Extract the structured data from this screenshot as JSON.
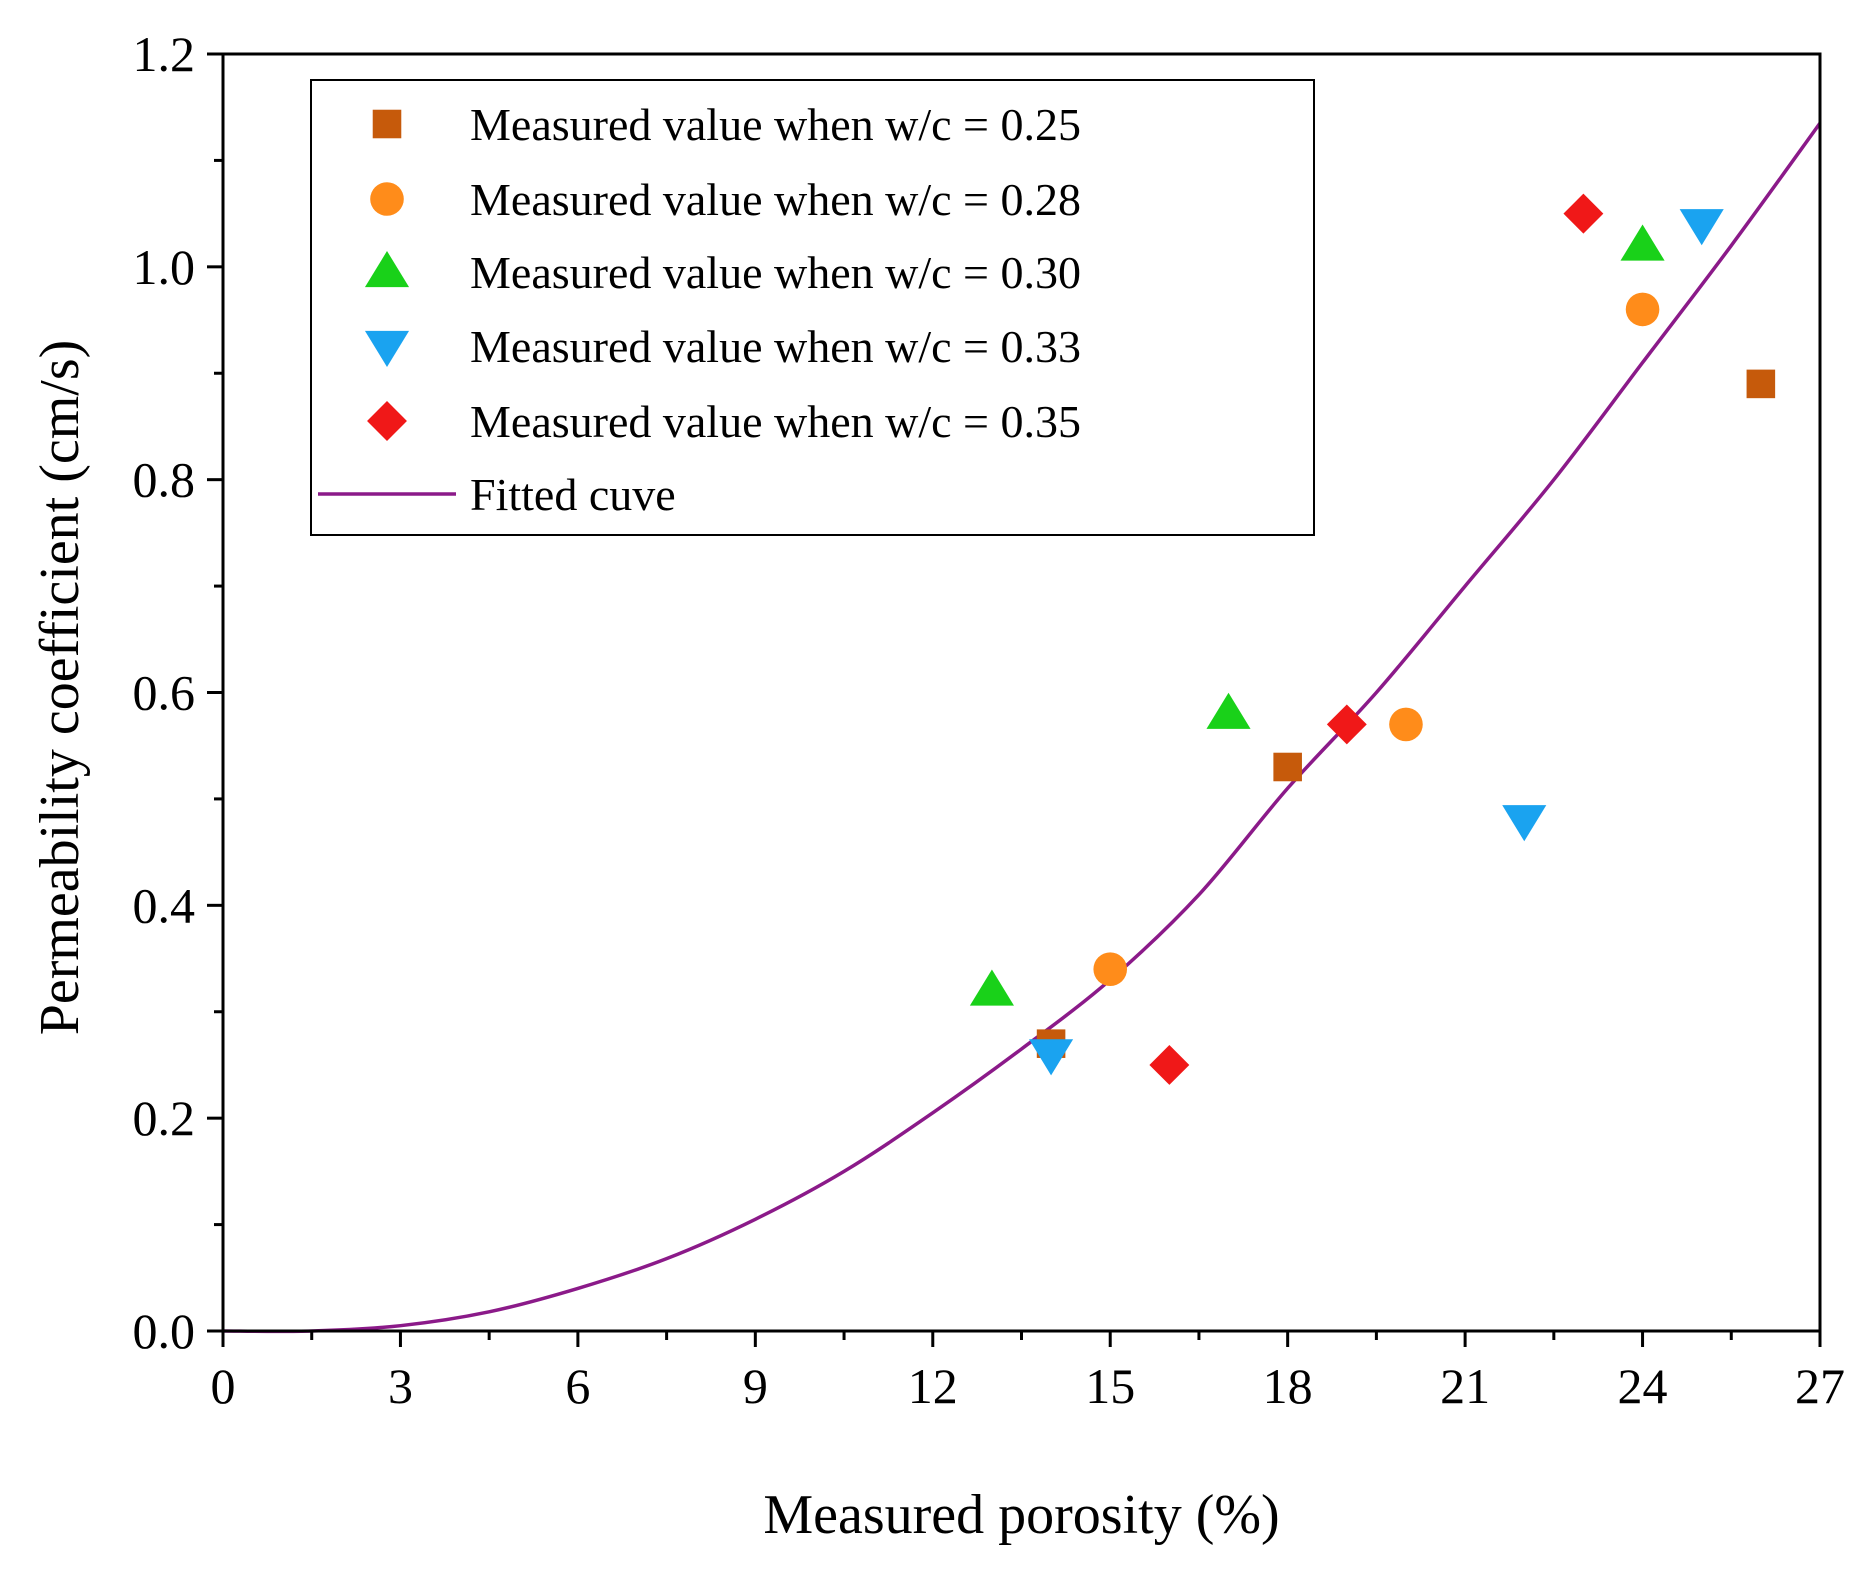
{
  "chart_data": {
    "type": "scatter",
    "title": "",
    "xlabel": "Measured porosity (%)",
    "ylabel": "Permeability coefficient  (cm/s)",
    "xlim": [
      0,
      27
    ],
    "ylim": [
      0,
      1.2
    ],
    "x_ticks": [
      "0",
      "3",
      "6",
      "9",
      "12",
      "15",
      "18",
      "21",
      "24",
      "27"
    ],
    "y_ticks": [
      "0.0",
      "0.2",
      "0.4",
      "0.6",
      "0.8",
      "1.0",
      "1.2"
    ],
    "legend_position": "top-left",
    "series": [
      {
        "name": "Measured value when w/c = 0.25",
        "marker": "square",
        "color": "#C65A0B",
        "points": [
          [
            14,
            0.27
          ],
          [
            18,
            0.53
          ],
          [
            26,
            0.89
          ]
        ]
      },
      {
        "name": "Measured value when w/c = 0.28",
        "marker": "circle",
        "color": "#FF8C1A",
        "points": [
          [
            15,
            0.34
          ],
          [
            20,
            0.57
          ],
          [
            24,
            0.96
          ]
        ]
      },
      {
        "name": "Measured value when w/c = 0.30",
        "marker": "triangle-up",
        "color": "#19D119",
        "points": [
          [
            13,
            0.32
          ],
          [
            17,
            0.58
          ],
          [
            24,
            1.02
          ]
        ]
      },
      {
        "name": "Measured value when w/c = 0.33",
        "marker": "triangle-down",
        "color": "#1AA3F0",
        "points": [
          [
            14,
            0.26
          ],
          [
            22,
            0.48
          ],
          [
            25,
            1.04
          ]
        ]
      },
      {
        "name": "Measured value when w/c = 0.35",
        "marker": "diamond",
        "color": "#F01818",
        "points": [
          [
            16,
            0.25
          ],
          [
            19,
            0.57
          ],
          [
            23,
            1.05
          ]
        ]
      }
    ],
    "fitted_curve": {
      "name": "Fitted cuve",
      "color": "#8B1A89",
      "points": [
        [
          0,
          0
        ],
        [
          1.5,
          0.0
        ],
        [
          3,
          0.005
        ],
        [
          4.5,
          0.018
        ],
        [
          6,
          0.04
        ],
        [
          7.5,
          0.068
        ],
        [
          9,
          0.105
        ],
        [
          10.5,
          0.15
        ],
        [
          12,
          0.205
        ],
        [
          13.5,
          0.265
        ],
        [
          15,
          0.33
        ],
        [
          16.5,
          0.41
        ],
        [
          18,
          0.51
        ],
        [
          19.5,
          0.6
        ],
        [
          21,
          0.7
        ],
        [
          22.5,
          0.8
        ],
        [
          24,
          0.91
        ],
        [
          25.5,
          1.02
        ],
        [
          27,
          1.135
        ]
      ]
    }
  }
}
